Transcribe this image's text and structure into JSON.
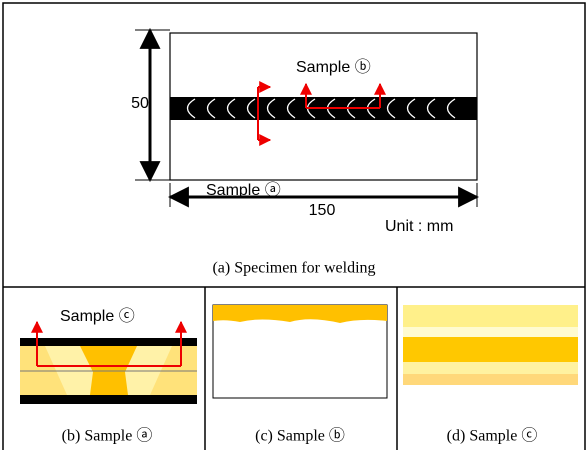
{
  "specimen": {
    "height_label": "50",
    "width_label": "150",
    "unit": "Unit : mm",
    "sample_b_label": "Sample ⓑ",
    "sample_a_label": "Sample ⓐ",
    "caption": "(a) Specimen for welding"
  },
  "panels": [
    {
      "label": "Sample ⓒ",
      "caption": "(b) Sample ⓐ"
    },
    {
      "caption": "(c) Sample ⓑ"
    },
    {
      "caption": "(d) Sample ⓒ"
    }
  ]
}
